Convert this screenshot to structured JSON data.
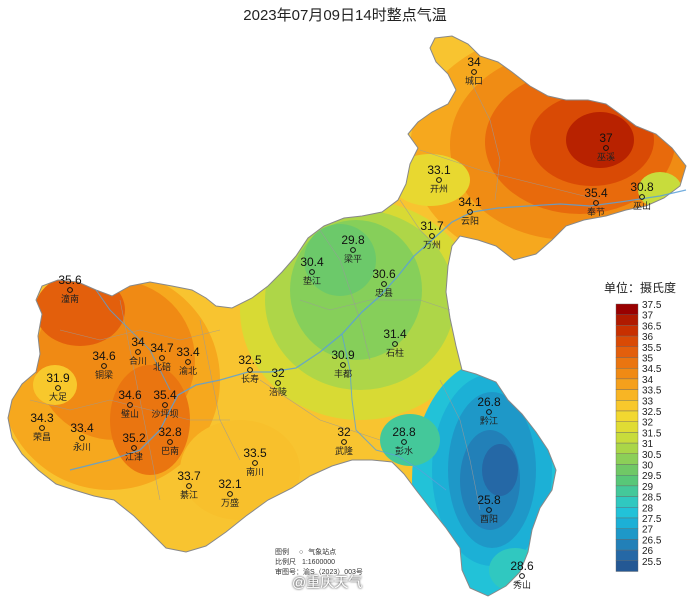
{
  "title": "2023年07月09日14时整点气温",
  "unit_label": "单位：摄氏度",
  "legend": {
    "labels": [
      "37.5",
      "37",
      "36.5",
      "36",
      "35.5",
      "35",
      "34.5",
      "34",
      "33.5",
      "33",
      "32.5",
      "32",
      "31.5",
      "31",
      "30.5",
      "30",
      "29.5",
      "29",
      "28.5",
      "28",
      "27.5",
      "27",
      "26.5",
      "26",
      "25.5"
    ],
    "colors": [
      "#990000",
      "#b01a00",
      "#c83000",
      "#d94a05",
      "#e35f0c",
      "#ea7510",
      "#f08a14",
      "#f5a01c",
      "#f8b524",
      "#f8c82c",
      "#f2d830",
      "#e0dc34",
      "#c8dc3c",
      "#aad648",
      "#8ccf58",
      "#70c866",
      "#58c778",
      "#44c89a",
      "#30c8c0",
      "#22c2d8",
      "#1cb0d6",
      "#1e98c8",
      "#2280b8",
      "#2568a6",
      "#245894"
    ],
    "colors_note": ""
  },
  "stations": [
    {
      "name": "城口",
      "value": "34"
    },
    {
      "name": "巫溪",
      "value": "37"
    },
    {
      "name": "开州",
      "value": "33.1"
    },
    {
      "name": "云阳",
      "value": "34.1"
    },
    {
      "name": "奉节",
      "value": "35.4"
    },
    {
      "name": "巫山",
      "value": "30.8"
    },
    {
      "name": "万州",
      "value": "31.7"
    },
    {
      "name": "梁平",
      "value": "29.8"
    },
    {
      "name": "垫江",
      "value": "30.4"
    },
    {
      "name": "忠县",
      "value": "30.6"
    },
    {
      "name": "石柱",
      "value": "31.4"
    },
    {
      "name": "潼南",
      "value": "35.6"
    },
    {
      "name": "合川",
      "value": "34"
    },
    {
      "name": "铜梁",
      "value": "34.6"
    },
    {
      "name": "北碚",
      "value": "34.7"
    },
    {
      "name": "渝北",
      "value": "33.4"
    },
    {
      "name": "长寿",
      "value": "32.5"
    },
    {
      "name": "涪陵",
      "value": "32"
    },
    {
      "name": "丰都",
      "value": "30.9"
    },
    {
      "name": "大足",
      "value": "31.9"
    },
    {
      "name": "璧山",
      "value": "34.6"
    },
    {
      "name": "沙坪坝",
      "value": "35.4"
    },
    {
      "name": "荣昌",
      "value": "34.3"
    },
    {
      "name": "永川",
      "value": "33.4"
    },
    {
      "name": "江津",
      "value": "35.2"
    },
    {
      "name": "巴南",
      "value": "32.8"
    },
    {
      "name": "南川",
      "value": "33.5"
    },
    {
      "name": "武隆",
      "value": "32"
    },
    {
      "name": "彭水",
      "value": "28.8"
    },
    {
      "name": "黔江",
      "value": "26.8"
    },
    {
      "name": "綦江",
      "value": "33.7"
    },
    {
      "name": "万盛",
      "value": "32.1"
    },
    {
      "name": "酉阳",
      "value": "25.8"
    },
    {
      "name": "秀山",
      "value": "28.6"
    }
  ],
  "footer": {
    "legend_label": "图例",
    "legend_symbol": "○",
    "legend_item": "气象站点",
    "scale_label": "比例尺",
    "scale_value": "1:1600000",
    "approval_label": "审图号：",
    "approval_value": "渝S（2023）003号"
  },
  "watermark": "@重庆天气"
}
